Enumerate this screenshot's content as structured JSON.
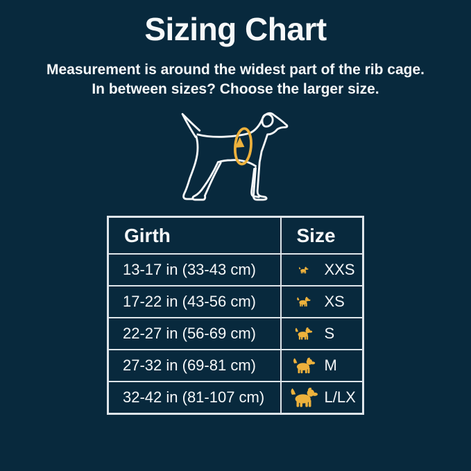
{
  "page": {
    "title": "Sizing Chart",
    "subtitle_line1": "Measurement is around the widest part of the rib cage.",
    "subtitle_line2": "In between sizes? Choose the larger size."
  },
  "colors": {
    "background": "#08293d",
    "text": "#f6f8f9",
    "accent_gold": "#edb13c",
    "table_border": "#dfe5ea"
  },
  "illustration": {
    "description": "white outline dog with gold measuring tape loop around rib cage",
    "dog_icon": "dog-outline-illustration",
    "tape_icon": "measuring-tape-loop-icon"
  },
  "table": {
    "headers": [
      "Girth",
      "Size"
    ],
    "rows": [
      {
        "girth": "13-17 in (33-43 cm)",
        "size": "XXS",
        "icon": "tiny-dog-icon",
        "icon_size": 15
      },
      {
        "girth": "17-22 in (43-56 cm)",
        "size": "XS",
        "icon": "small-dog-icon",
        "icon_size": 21
      },
      {
        "girth": "22-27 in (56-69 cm)",
        "size": "S",
        "icon": "spaniel-dog-icon",
        "icon_size": 27
      },
      {
        "girth": "27-32 in (69-81 cm)",
        "size": "M",
        "icon": "medium-dog-icon",
        "icon_size": 34
      },
      {
        "girth": "32-42 in (81-107 cm)",
        "size": "L/LX",
        "icon": "large-dog-icon",
        "icon_size": 42
      }
    ]
  },
  "chart_data": {
    "type": "table",
    "title": "Sizing Chart",
    "columns": [
      "Girth",
      "Size"
    ],
    "rows": [
      [
        "13-17 in (33-43 cm)",
        "XXS"
      ],
      [
        "17-22 in (43-56 cm)",
        "XS"
      ],
      [
        "22-27 in (56-69 cm)",
        "S"
      ],
      [
        "27-32 in (69-81 cm)",
        "M"
      ],
      [
        "32-42 in (81-107 cm)",
        "L/LX"
      ]
    ]
  }
}
